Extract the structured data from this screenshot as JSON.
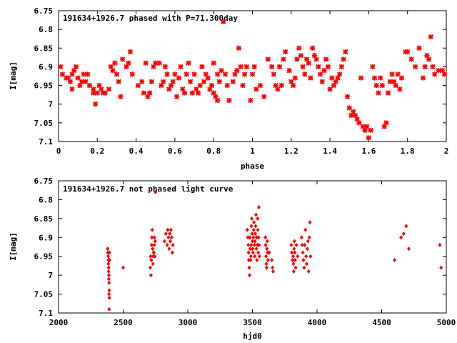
{
  "chart_data": [
    {
      "type": "scatter",
      "title": "191634+1926.7 phased with P=71.300day",
      "xlabel": "phase",
      "ylabel": "I[mag]",
      "xlim": [
        0,
        2
      ],
      "ylim": [
        7.1,
        6.75
      ],
      "x_reversed": false,
      "y_inverted": true,
      "grid": false,
      "x_ticks": [
        "0",
        "0.2",
        "0.4",
        "0.6",
        "0.8",
        "1",
        "1.2",
        "1.4",
        "1.6",
        "1.8",
        "2"
      ],
      "y_ticks": [
        "6.75",
        "6.8",
        "6.85",
        "6.9",
        "6.95",
        "7",
        "7.05",
        "7.1"
      ],
      "marker_color": "#ff0000",
      "points": [
        [
          0.01,
          6.9
        ],
        [
          0.02,
          6.92
        ],
        [
          0.04,
          6.93
        ],
        [
          0.05,
          6.93
        ],
        [
          0.06,
          6.94
        ],
        [
          0.07,
          6.96
        ],
        [
          0.07,
          6.92
        ],
        [
          0.08,
          6.91
        ],
        [
          0.09,
          6.9
        ],
        [
          0.1,
          6.93
        ],
        [
          0.11,
          6.95
        ],
        [
          0.12,
          6.94
        ],
        [
          0.13,
          6.92
        ],
        [
          0.14,
          6.94
        ],
        [
          0.15,
          6.92
        ],
        [
          0.16,
          6.95
        ],
        [
          0.18,
          6.96
        ],
        [
          0.18,
          6.97
        ],
        [
          0.19,
          7.0
        ],
        [
          0.2,
          6.97
        ],
        [
          0.21,
          6.95
        ],
        [
          0.22,
          6.96
        ],
        [
          0.23,
          6.97
        ],
        [
          0.24,
          6.97
        ],
        [
          0.26,
          6.96
        ],
        [
          0.27,
          6.9
        ],
        [
          0.28,
          6.91
        ],
        [
          0.29,
          6.89
        ],
        [
          0.3,
          6.92
        ],
        [
          0.31,
          6.94
        ],
        [
          0.32,
          6.98
        ],
        [
          0.33,
          6.88
        ],
        [
          0.35,
          6.9
        ],
        [
          0.36,
          6.89
        ],
        [
          0.37,
          6.86
        ],
        [
          0.38,
          6.92
        ],
        [
          0.41,
          6.95
        ],
        [
          0.43,
          6.94
        ],
        [
          0.44,
          6.97
        ],
        [
          0.45,
          6.89
        ],
        [
          0.46,
          6.98
        ],
        [
          0.47,
          6.97
        ],
        [
          0.48,
          6.94
        ],
        [
          0.49,
          6.9
        ],
        [
          0.5,
          6.89
        ],
        [
          0.52,
          6.89
        ],
        [
          0.53,
          6.95
        ],
        [
          0.54,
          6.94
        ],
        [
          0.55,
          6.9
        ],
        [
          0.56,
          6.92
        ],
        [
          0.57,
          6.96
        ],
        [
          0.58,
          6.95
        ],
        [
          0.59,
          6.94
        ],
        [
          0.6,
          6.92
        ],
        [
          0.61,
          6.98
        ],
        [
          0.62,
          6.93
        ],
        [
          0.63,
          6.9
        ],
        [
          0.64,
          6.96
        ],
        [
          0.65,
          6.97
        ],
        [
          0.66,
          6.92
        ],
        [
          0.67,
          6.89
        ],
        [
          0.68,
          6.94
        ],
        [
          0.69,
          6.97
        ],
        [
          0.7,
          6.92
        ],
        [
          0.71,
          6.96
        ],
        [
          0.72,
          6.97
        ],
        [
          0.73,
          6.95
        ],
        [
          0.74,
          6.9
        ],
        [
          0.75,
          6.94
        ],
        [
          0.76,
          6.92
        ],
        [
          0.77,
          6.93
        ],
        [
          0.78,
          6.96
        ],
        [
          0.79,
          6.95
        ],
        [
          0.8,
          6.97
        ],
        [
          0.8,
          6.89
        ],
        [
          0.81,
          6.98
        ],
        [
          0.82,
          6.92
        ],
        [
          0.82,
          6.99
        ],
        [
          0.83,
          6.94
        ],
        [
          0.84,
          6.91
        ],
        [
          0.85,
          6.78
        ],
        [
          0.86,
          6.92
        ],
        [
          0.87,
          6.95
        ],
        [
          0.88,
          6.99
        ],
        [
          0.9,
          6.94
        ],
        [
          0.91,
          6.92
        ],
        [
          0.92,
          6.91
        ],
        [
          0.93,
          6.85
        ],
        [
          0.94,
          6.9
        ],
        [
          0.95,
          6.95
        ],
        [
          0.96,
          6.92
        ],
        [
          0.97,
          6.9
        ],
        [
          0.99,
          6.99
        ],
        [
          1.0,
          6.92
        ],
        [
          1.01,
          6.9
        ],
        [
          1.02,
          6.96
        ],
        [
          1.04,
          6.95
        ],
        [
          1.06,
          6.98
        ],
        [
          1.08,
          6.88
        ],
        [
          1.1,
          6.9
        ],
        [
          1.11,
          6.92
        ],
        [
          1.12,
          6.95
        ],
        [
          1.13,
          6.96
        ],
        [
          1.14,
          6.9
        ],
        [
          1.15,
          6.95
        ],
        [
          1.16,
          6.88
        ],
        [
          1.17,
          6.86
        ],
        [
          1.19,
          6.91
        ],
        [
          1.2,
          6.94
        ],
        [
          1.21,
          6.95
        ],
        [
          1.22,
          6.93
        ],
        [
          1.23,
          6.88
        ],
        [
          1.24,
          6.85
        ],
        [
          1.25,
          6.87
        ],
        [
          1.26,
          6.9
        ],
        [
          1.27,
          6.92
        ],
        [
          1.28,
          6.88
        ],
        [
          1.29,
          6.89
        ],
        [
          1.3,
          6.93
        ],
        [
          1.31,
          6.85
        ],
        [
          1.32,
          6.87
        ],
        [
          1.33,
          6.88
        ],
        [
          1.34,
          6.9
        ],
        [
          1.35,
          6.92
        ],
        [
          1.36,
          6.94
        ],
        [
          1.37,
          6.91
        ],
        [
          1.38,
          6.88
        ],
        [
          1.39,
          6.9
        ],
        [
          1.4,
          6.96
        ],
        [
          1.41,
          6.93
        ],
        [
          1.42,
          6.95
        ],
        [
          1.43,
          6.94
        ],
        [
          1.44,
          6.93
        ],
        [
          1.45,
          6.92
        ],
        [
          1.46,
          6.9
        ],
        [
          1.47,
          6.88
        ],
        [
          1.48,
          6.86
        ],
        [
          1.49,
          6.98
        ],
        [
          1.5,
          7.01
        ],
        [
          1.51,
          7.03
        ],
        [
          1.52,
          7.02
        ],
        [
          1.53,
          7.03
        ],
        [
          1.54,
          7.04
        ],
        [
          1.55,
          7.05
        ],
        [
          1.56,
          6.93
        ],
        [
          1.57,
          7.06
        ],
        [
          1.58,
          7.07
        ],
        [
          1.59,
          7.06
        ],
        [
          1.6,
          7.09
        ],
        [
          1.61,
          7.07
        ],
        [
          1.62,
          6.9
        ],
        [
          1.63,
          6.93
        ],
        [
          1.64,
          6.95
        ],
        [
          1.65,
          6.97
        ],
        [
          1.66,
          6.93
        ],
        [
          1.67,
          6.95
        ],
        [
          1.68,
          7.06
        ],
        [
          1.69,
          7.05
        ],
        [
          1.7,
          6.97
        ],
        [
          1.71,
          6.94
        ],
        [
          1.72,
          6.92
        ],
        [
          1.73,
          6.94
        ],
        [
          1.74,
          6.95
        ],
        [
          1.75,
          6.92
        ],
        [
          1.76,
          6.96
        ],
        [
          1.77,
          6.93
        ],
        [
          1.79,
          6.86
        ],
        [
          1.8,
          6.86
        ],
        [
          1.82,
          6.88
        ],
        [
          1.84,
          6.9
        ],
        [
          1.86,
          6.85
        ],
        [
          1.88,
          6.93
        ],
        [
          1.89,
          6.9
        ],
        [
          1.9,
          6.87
        ],
        [
          1.91,
          6.88
        ],
        [
          1.92,
          6.82
        ],
        [
          1.93,
          6.9
        ],
        [
          1.94,
          6.92
        ],
        [
          1.96,
          6.91
        ],
        [
          1.98,
          6.91
        ],
        [
          1.99,
          6.92
        ]
      ]
    },
    {
      "type": "scatter",
      "title": "191634+1926.7 not phased light curve",
      "xlabel": "hjd0",
      "ylabel": "I[mag]",
      "xlim": [
        2000,
        5000
      ],
      "ylim": [
        7.1,
        6.75
      ],
      "y_inverted": true,
      "grid": false,
      "x_ticks": [
        "2000",
        "2500",
        "3000",
        "3500",
        "4000",
        "4500",
        "5000"
      ],
      "y_ticks": [
        "6.75",
        "6.8",
        "6.85",
        "6.9",
        "6.95",
        "7",
        "7.05",
        "7.1"
      ],
      "marker_color": "#ff0000",
      "points": [
        [
          2380,
          6.93
        ],
        [
          2382,
          6.94
        ],
        [
          2384,
          6.95
        ],
        [
          2386,
          6.96
        ],
        [
          2385,
          6.97
        ],
        [
          2388,
          6.98
        ],
        [
          2387,
          6.99
        ],
        [
          2390,
          7.0
        ],
        [
          2389,
          7.01
        ],
        [
          2391,
          7.02
        ],
        [
          2392,
          7.04
        ],
        [
          2390,
          7.05
        ],
        [
          2393,
          7.06
        ],
        [
          2391,
          7.09
        ],
        [
          2394,
          6.94
        ],
        [
          2395,
          6.96
        ],
        [
          2500,
          6.98
        ],
        [
          2710,
          6.98
        ],
        [
          2712,
          6.95
        ],
        [
          2715,
          7.0
        ],
        [
          2718,
          6.96
        ],
        [
          2720,
          6.92
        ],
        [
          2722,
          6.9
        ],
        [
          2725,
          6.88
        ],
        [
          2728,
          6.93
        ],
        [
          2730,
          6.97
        ],
        [
          2732,
          6.95
        ],
        [
          2735,
          6.94
        ],
        [
          2738,
          6.94
        ],
        [
          2740,
          6.92
        ],
        [
          2742,
          6.9
        ],
        [
          2745,
          6.95
        ],
        [
          2748,
          6.91
        ],
        [
          2750,
          6.78
        ],
        [
          2820,
          6.91
        ],
        [
          2830,
          6.89
        ],
        [
          2840,
          6.92
        ],
        [
          2845,
          6.88
        ],
        [
          2850,
          6.9
        ],
        [
          2855,
          6.93
        ],
        [
          2860,
          6.89
        ],
        [
          2865,
          6.91
        ],
        [
          2870,
          6.88
        ],
        [
          2875,
          6.9
        ],
        [
          2880,
          6.94
        ],
        [
          2885,
          6.92
        ],
        [
          3460,
          6.88
        ],
        [
          3465,
          6.9
        ],
        [
          3468,
          6.92
        ],
        [
          3470,
          6.94
        ],
        [
          3472,
          6.96
        ],
        [
          3475,
          6.98
        ],
        [
          3478,
          7.0
        ],
        [
          3480,
          6.9
        ],
        [
          3482,
          6.93
        ],
        [
          3485,
          6.96
        ],
        [
          3488,
          6.95
        ],
        [
          3490,
          6.92
        ],
        [
          3492,
          6.87
        ],
        [
          3495,
          6.85
        ],
        [
          3498,
          6.89
        ],
        [
          3500,
          6.91
        ],
        [
          3502,
          6.93
        ],
        [
          3505,
          6.94
        ],
        [
          3508,
          6.9
        ],
        [
          3510,
          6.88
        ],
        [
          3512,
          6.86
        ],
        [
          3515,
          6.92
        ],
        [
          3518,
          6.95
        ],
        [
          3520,
          6.91
        ],
        [
          3522,
          6.89
        ],
        [
          3525,
          6.87
        ],
        [
          3528,
          6.84
        ],
        [
          3530,
          6.93
        ],
        [
          3532,
          6.9
        ],
        [
          3535,
          6.96
        ],
        [
          3538,
          6.92
        ],
        [
          3540,
          6.85
        ],
        [
          3542,
          6.88
        ],
        [
          3545,
          6.94
        ],
        [
          3548,
          6.9
        ],
        [
          3550,
          6.82
        ],
        [
          3552,
          6.92
        ],
        [
          3555,
          6.95
        ],
        [
          3600,
          6.9
        ],
        [
          3602,
          6.92
        ],
        [
          3605,
          6.95
        ],
        [
          3608,
          6.97
        ],
        [
          3610,
          6.98
        ],
        [
          3612,
          6.93
        ],
        [
          3615,
          6.91
        ],
        [
          3618,
          6.94
        ],
        [
          3620,
          6.96
        ],
        [
          3630,
          6.94
        ],
        [
          3650,
          6.96
        ],
        [
          3655,
          6.98
        ],
        [
          3660,
          6.99
        ],
        [
          3800,
          6.92
        ],
        [
          3805,
          6.94
        ],
        [
          3810,
          6.96
        ],
        [
          3815,
          6.95
        ],
        [
          3818,
          6.97
        ],
        [
          3820,
          6.99
        ],
        [
          3822,
          6.93
        ],
        [
          3825,
          6.91
        ],
        [
          3828,
          6.94
        ],
        [
          3830,
          6.96
        ],
        [
          3835,
          6.98
        ],
        [
          3840,
          6.92
        ],
        [
          3850,
          6.95
        ],
        [
          3880,
          6.9
        ],
        [
          3885,
          6.92
        ],
        [
          3890,
          6.94
        ],
        [
          3895,
          6.96
        ],
        [
          3900,
          6.98
        ],
        [
          3905,
          6.92
        ],
        [
          3910,
          6.88
        ],
        [
          3915,
          6.95
        ],
        [
          3920,
          6.97
        ],
        [
          3925,
          6.93
        ],
        [
          3930,
          6.91
        ],
        [
          3935,
          6.99
        ],
        [
          3940,
          6.9
        ],
        [
          3945,
          6.86
        ],
        [
          3950,
          6.95
        ],
        [
          4600,
          6.96
        ],
        [
          4650,
          6.9
        ],
        [
          4670,
          6.89
        ],
        [
          4690,
          6.87
        ],
        [
          4710,
          6.93
        ],
        [
          4950,
          6.92
        ],
        [
          4960,
          6.98
        ]
      ]
    }
  ]
}
